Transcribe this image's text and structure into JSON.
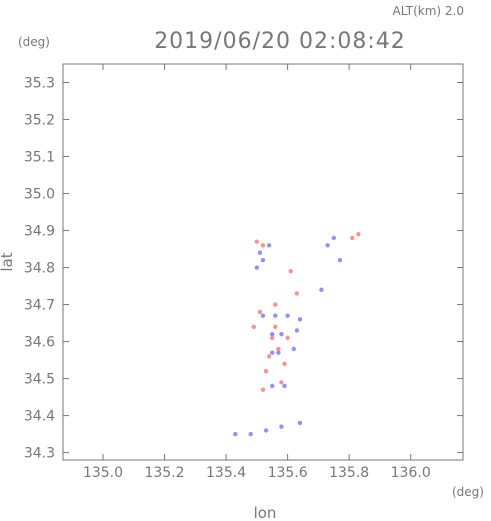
{
  "chart_data": {
    "type": "scatter",
    "title": "2019/06/20 02:08:42",
    "subtitle": "ALT(km) 2.0",
    "xlabel": "lon",
    "ylabel": "lat",
    "x_unit": "(deg)",
    "y_unit": "(deg)",
    "xlim": [
      134.87,
      136.17
    ],
    "ylim": [
      34.28,
      35.35
    ],
    "x_ticks": [
      135.0,
      135.2,
      135.4,
      135.6,
      135.8,
      136.0
    ],
    "x_tick_labels": [
      "135.0",
      "135.2",
      "135.4",
      "135.6",
      "135.8",
      "136.0"
    ],
    "y_ticks": [
      34.3,
      34.4,
      34.5,
      34.6,
      34.7,
      34.8,
      34.9,
      35.0,
      35.1,
      35.2,
      35.3
    ],
    "y_tick_labels": [
      "34.3",
      "34.4",
      "34.5",
      "34.6",
      "34.7",
      "34.8",
      "34.9",
      "35.0",
      "35.1",
      "35.2",
      "35.3"
    ],
    "colors": {
      "positive": "#ff6b6b",
      "negative": "#6b6bff",
      "axis": "#777777"
    },
    "series": [
      {
        "color": "#ff6b6b",
        "x": [
          135.5,
          135.52,
          135.61,
          135.83,
          135.81,
          135.63,
          135.51,
          135.56,
          135.49,
          135.56,
          135.55,
          135.6,
          135.57,
          135.54,
          135.53,
          135.58,
          135.59,
          135.52
        ],
        "y": [
          34.87,
          34.86,
          34.79,
          34.89,
          34.88,
          34.73,
          34.68,
          34.7,
          34.64,
          34.64,
          34.61,
          34.61,
          34.58,
          34.56,
          34.52,
          34.49,
          34.54,
          34.47
        ]
      },
      {
        "color": "#6b6bff",
        "x": [
          135.52,
          135.54,
          135.5,
          135.51,
          135.73,
          135.75,
          135.77,
          135.71,
          135.52,
          135.56,
          135.6,
          135.64,
          135.55,
          135.58,
          135.63,
          135.55,
          135.57,
          135.62,
          135.55,
          135.59,
          135.43,
          135.48,
          135.53,
          135.58,
          135.64
        ],
        "y": [
          34.82,
          34.86,
          34.8,
          34.84,
          34.86,
          34.88,
          34.82,
          34.74,
          34.67,
          34.67,
          34.67,
          34.66,
          34.62,
          34.62,
          34.63,
          34.57,
          34.57,
          34.58,
          34.48,
          34.48,
          34.35,
          34.35,
          34.36,
          34.37,
          34.38
        ]
      }
    ]
  }
}
